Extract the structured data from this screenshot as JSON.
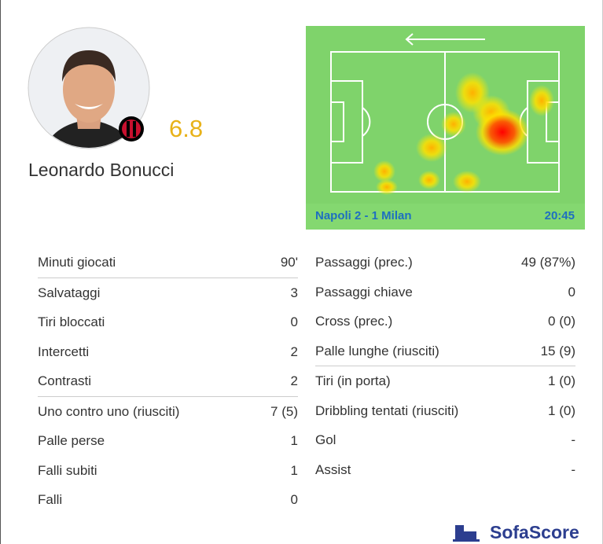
{
  "player": {
    "name": "Leonardo Bonucci",
    "rating": "6.8"
  },
  "heatmap": {
    "match": "Napoli 2 - 1 Milan",
    "time": "20:45"
  },
  "stats": {
    "left": [
      [
        [
          "Minuti giocati",
          "90'"
        ]
      ],
      [
        [
          "Salvataggi",
          "3"
        ],
        [
          "Tiri bloccati",
          "0"
        ],
        [
          "Intercetti",
          "2"
        ],
        [
          "Contrasti",
          "2"
        ]
      ],
      [
        [
          "Uno contro uno (riusciti)",
          "7 (5)"
        ],
        [
          "Palle perse",
          "1"
        ],
        [
          "Falli subiti",
          "1"
        ],
        [
          "Falli",
          "0"
        ]
      ]
    ],
    "right": [
      [
        [
          "Passaggi (prec.)",
          "49 (87%)"
        ],
        [
          "Passaggi chiave",
          "0"
        ],
        [
          "Cross (prec.)",
          "0 (0)"
        ],
        [
          "Palle lunghe (riusciti)",
          "15 (9)"
        ]
      ],
      [
        [
          "Tiri (in porta)",
          "1 (0)"
        ],
        [
          "Dribbling tentati (riusciti)",
          "1 (0)"
        ],
        [
          "Gol",
          "-"
        ],
        [
          "Assist",
          "-"
        ]
      ]
    ]
  },
  "brand": "SofaScore"
}
